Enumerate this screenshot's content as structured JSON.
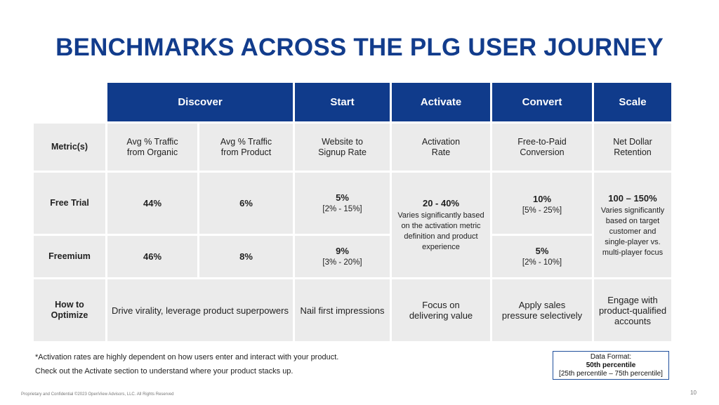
{
  "title": "BENCHMARKS ACROSS THE PLG USER JOURNEY",
  "headers": {
    "discover": "Discover",
    "start": "Start",
    "activate": "Activate",
    "convert": "Convert",
    "scale": "Scale"
  },
  "rows": {
    "metrics": {
      "label": "Metric(s)",
      "organic_line1": "Avg % Traffic",
      "organic_line2": "from Organic",
      "product_line1": "Avg % Traffic",
      "product_line2": "from Product",
      "start_line1": "Website to",
      "start_line2": "Signup Rate",
      "activate_line1": "Activation",
      "activate_line2": "Rate",
      "convert_line1": "Free-to-Paid",
      "convert_line2": "Conversion",
      "scale_line1": "Net Dollar",
      "scale_line2": "Retention"
    },
    "free_trial": {
      "label": "Free Trial",
      "organic": "44%",
      "product": "6%",
      "start_value": "5%",
      "start_range": "[2% - 15%]",
      "convert_value": "10%",
      "convert_range": "[5% - 25%]"
    },
    "freemium": {
      "label": "Freemium",
      "organic": "46%",
      "product": "8%",
      "start_value": "9%",
      "start_range": "[3% - 20%]",
      "convert_value": "5%",
      "convert_range": "[2% - 10%]"
    },
    "activate_merged": {
      "value": "20 - 40%",
      "note_line1": "Varies significantly based",
      "note_line2": "on the activation metric",
      "note_line3": "definition and product",
      "note_line4": "experience"
    },
    "scale_merged": {
      "value": "100 – 150%",
      "note_line1": "Varies significantly",
      "note_line2": "based on target",
      "note_line3": "customer and",
      "note_line4": "single-player vs.",
      "note_line5": "multi-player focus"
    },
    "optimize": {
      "label_line1": "How to",
      "label_line2": "Optimize",
      "discover": "Drive virality, leverage product superpowers",
      "start": "Nail first impressions",
      "activate_line1": "Focus on",
      "activate_line2": "delivering value",
      "convert_line1": "Apply sales",
      "convert_line2": "pressure selectively",
      "scale_line1": "Engage with",
      "scale_line2": "product-qualified",
      "scale_line3": "accounts"
    }
  },
  "footnotes": {
    "line1": "*Activation rates are highly dependent on how users enter and interact with your product.",
    "line2": "Check out the Activate section to understand where your product stacks up."
  },
  "legend": {
    "line1": "Data Format:",
    "line2": "50th percentile",
    "line3": "[25th percentile – 75th percentile]"
  },
  "footer": {
    "confidential": "Proprietary and Confidential ©2023 OpenView Advisors, LLC. All Rights Reserved",
    "page_number": "10"
  },
  "colors": {
    "header_blue": "#103b8b",
    "title_blue": "#123c8c",
    "cell_gray": "#ebebeb"
  }
}
